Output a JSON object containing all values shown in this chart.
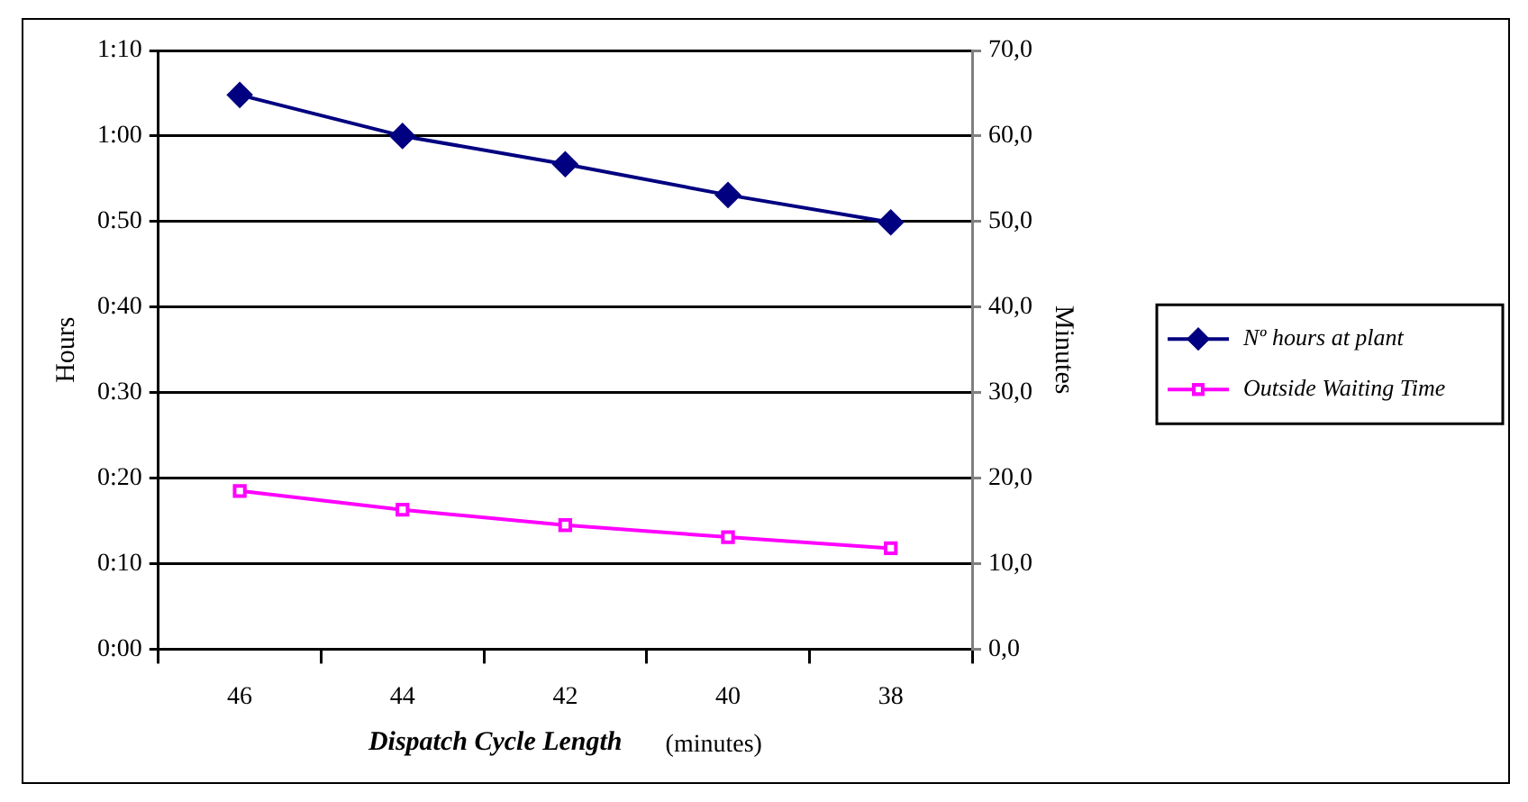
{
  "chart_data": {
    "type": "line",
    "xlabel": "Dispatch Cycle Length",
    "ylabel": "Hours",
    "y2label": "Minutes",
    "annotations": [
      "(minutes)"
    ],
    "categories": [
      "46",
      "44",
      "42",
      "40",
      "38"
    ],
    "series": [
      {
        "name": "Nº hours at plant",
        "color": "#000080",
        "marker": "diamond",
        "values": [
          64.8,
          60.0,
          56.7,
          53.1,
          49.9
        ]
      },
      {
        "name": "Outside Waiting Time",
        "color": "#ff00ff",
        "marker": "square",
        "values": [
          18.5,
          16.3,
          14.5,
          13.1,
          11.8
        ]
      }
    ],
    "ylim": [
      0,
      70
    ],
    "yticks": [
      {
        "value": 0,
        "label": "0:00"
      },
      {
        "value": 10,
        "label": "0:10"
      },
      {
        "value": 20,
        "label": "0:20"
      },
      {
        "value": 30,
        "label": "0:30"
      },
      {
        "value": 40,
        "label": "0:40"
      },
      {
        "value": 50,
        "label": "0:50"
      },
      {
        "value": 60,
        "label": "1:00"
      },
      {
        "value": 70,
        "label": "1:10"
      }
    ],
    "y2lim": [
      0,
      70
    ],
    "y2ticks": [
      {
        "value": 0,
        "label": "0,0"
      },
      {
        "value": 10,
        "label": "10,0"
      },
      {
        "value": 20,
        "label": "20,0"
      },
      {
        "value": 30,
        "label": "30,0"
      },
      {
        "value": 40,
        "label": "40,0"
      },
      {
        "value": 50,
        "label": "50,0"
      },
      {
        "value": 60,
        "label": "60,0"
      },
      {
        "value": 70,
        "label": "70,0"
      }
    ],
    "grid": "y",
    "legend": "right",
    "line_style": "solid"
  }
}
